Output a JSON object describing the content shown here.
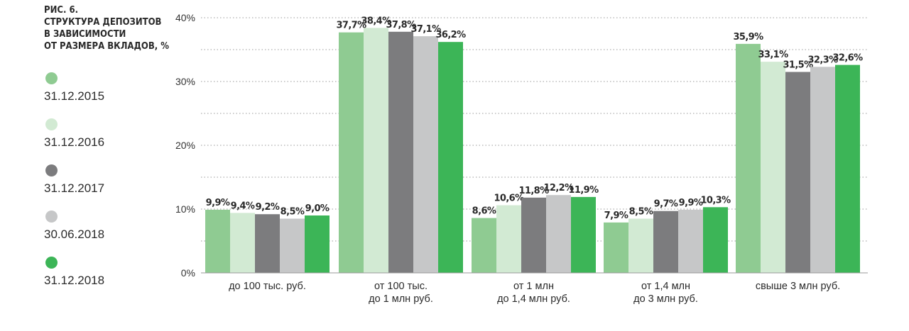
{
  "figure": {
    "title_lines": [
      "РИС. 6.",
      "СТРУКТУРА ДЕПОЗИТОВ",
      "В ЗАВИСИМОСТИ",
      "ОТ РАЗМЕРА ВКЛАДОВ, %"
    ]
  },
  "chart_data": {
    "type": "bar",
    "title": "РИС. 6. СТРУКТУРА ДЕПОЗИТОВ В ЗАВИСИМОСТИ ОТ РАЗМЕРА ВКЛАДОВ, %",
    "categories": [
      [
        "до 100 тыс. руб."
      ],
      [
        "от 100 тыс.",
        "до 1 млн руб."
      ],
      [
        "от 1 млн",
        "до 1,4 млн руб."
      ],
      [
        "от 1,4 млн",
        "до 3 млн руб."
      ],
      [
        "свыше 3 млн руб."
      ]
    ],
    "series": [
      {
        "name": "31.12.2015",
        "color": "#8fcb92",
        "values": [
          9.9,
          37.7,
          8.6,
          7.9,
          35.9
        ],
        "labels": [
          "9,9%",
          "37,7%",
          "8,6%",
          "7,9%",
          "35,9%"
        ]
      },
      {
        "name": "31.12.2016",
        "color": "#d2ead3",
        "values": [
          9.4,
          38.4,
          10.6,
          8.5,
          33.1
        ],
        "labels": [
          "9,4%",
          "38,4%",
          "10,6%",
          "8,5%",
          "33,1%"
        ]
      },
      {
        "name": "31.12.2017",
        "color": "#7c7c7e",
        "values": [
          9.2,
          37.8,
          11.8,
          9.7,
          31.5
        ],
        "labels": [
          "9,2%",
          "37,8%",
          "11,8%",
          "9,7%",
          "31,5%"
        ]
      },
      {
        "name": "30.06.2018",
        "color": "#c6c7c8",
        "values": [
          8.5,
          37.1,
          12.2,
          9.9,
          32.3
        ],
        "labels": [
          "8,5%",
          "37,1%",
          "12,2%",
          "9,9%",
          "32,3%"
        ]
      },
      {
        "name": "31.12.2018",
        "color": "#3cb557",
        "values": [
          9.0,
          36.2,
          11.9,
          10.3,
          32.6
        ],
        "labels": [
          "9,0%",
          "36,2%",
          "11,9%",
          "10,3%",
          "32,6%"
        ]
      }
    ],
    "ylim": [
      0,
      40
    ],
    "yticks": [
      0,
      10,
      20,
      30,
      40
    ],
    "ytick_labels": [
      "0%",
      "10%",
      "20%",
      "30%",
      "40%"
    ],
    "grid": "dotted, every 5%",
    "legend_position": "left"
  }
}
